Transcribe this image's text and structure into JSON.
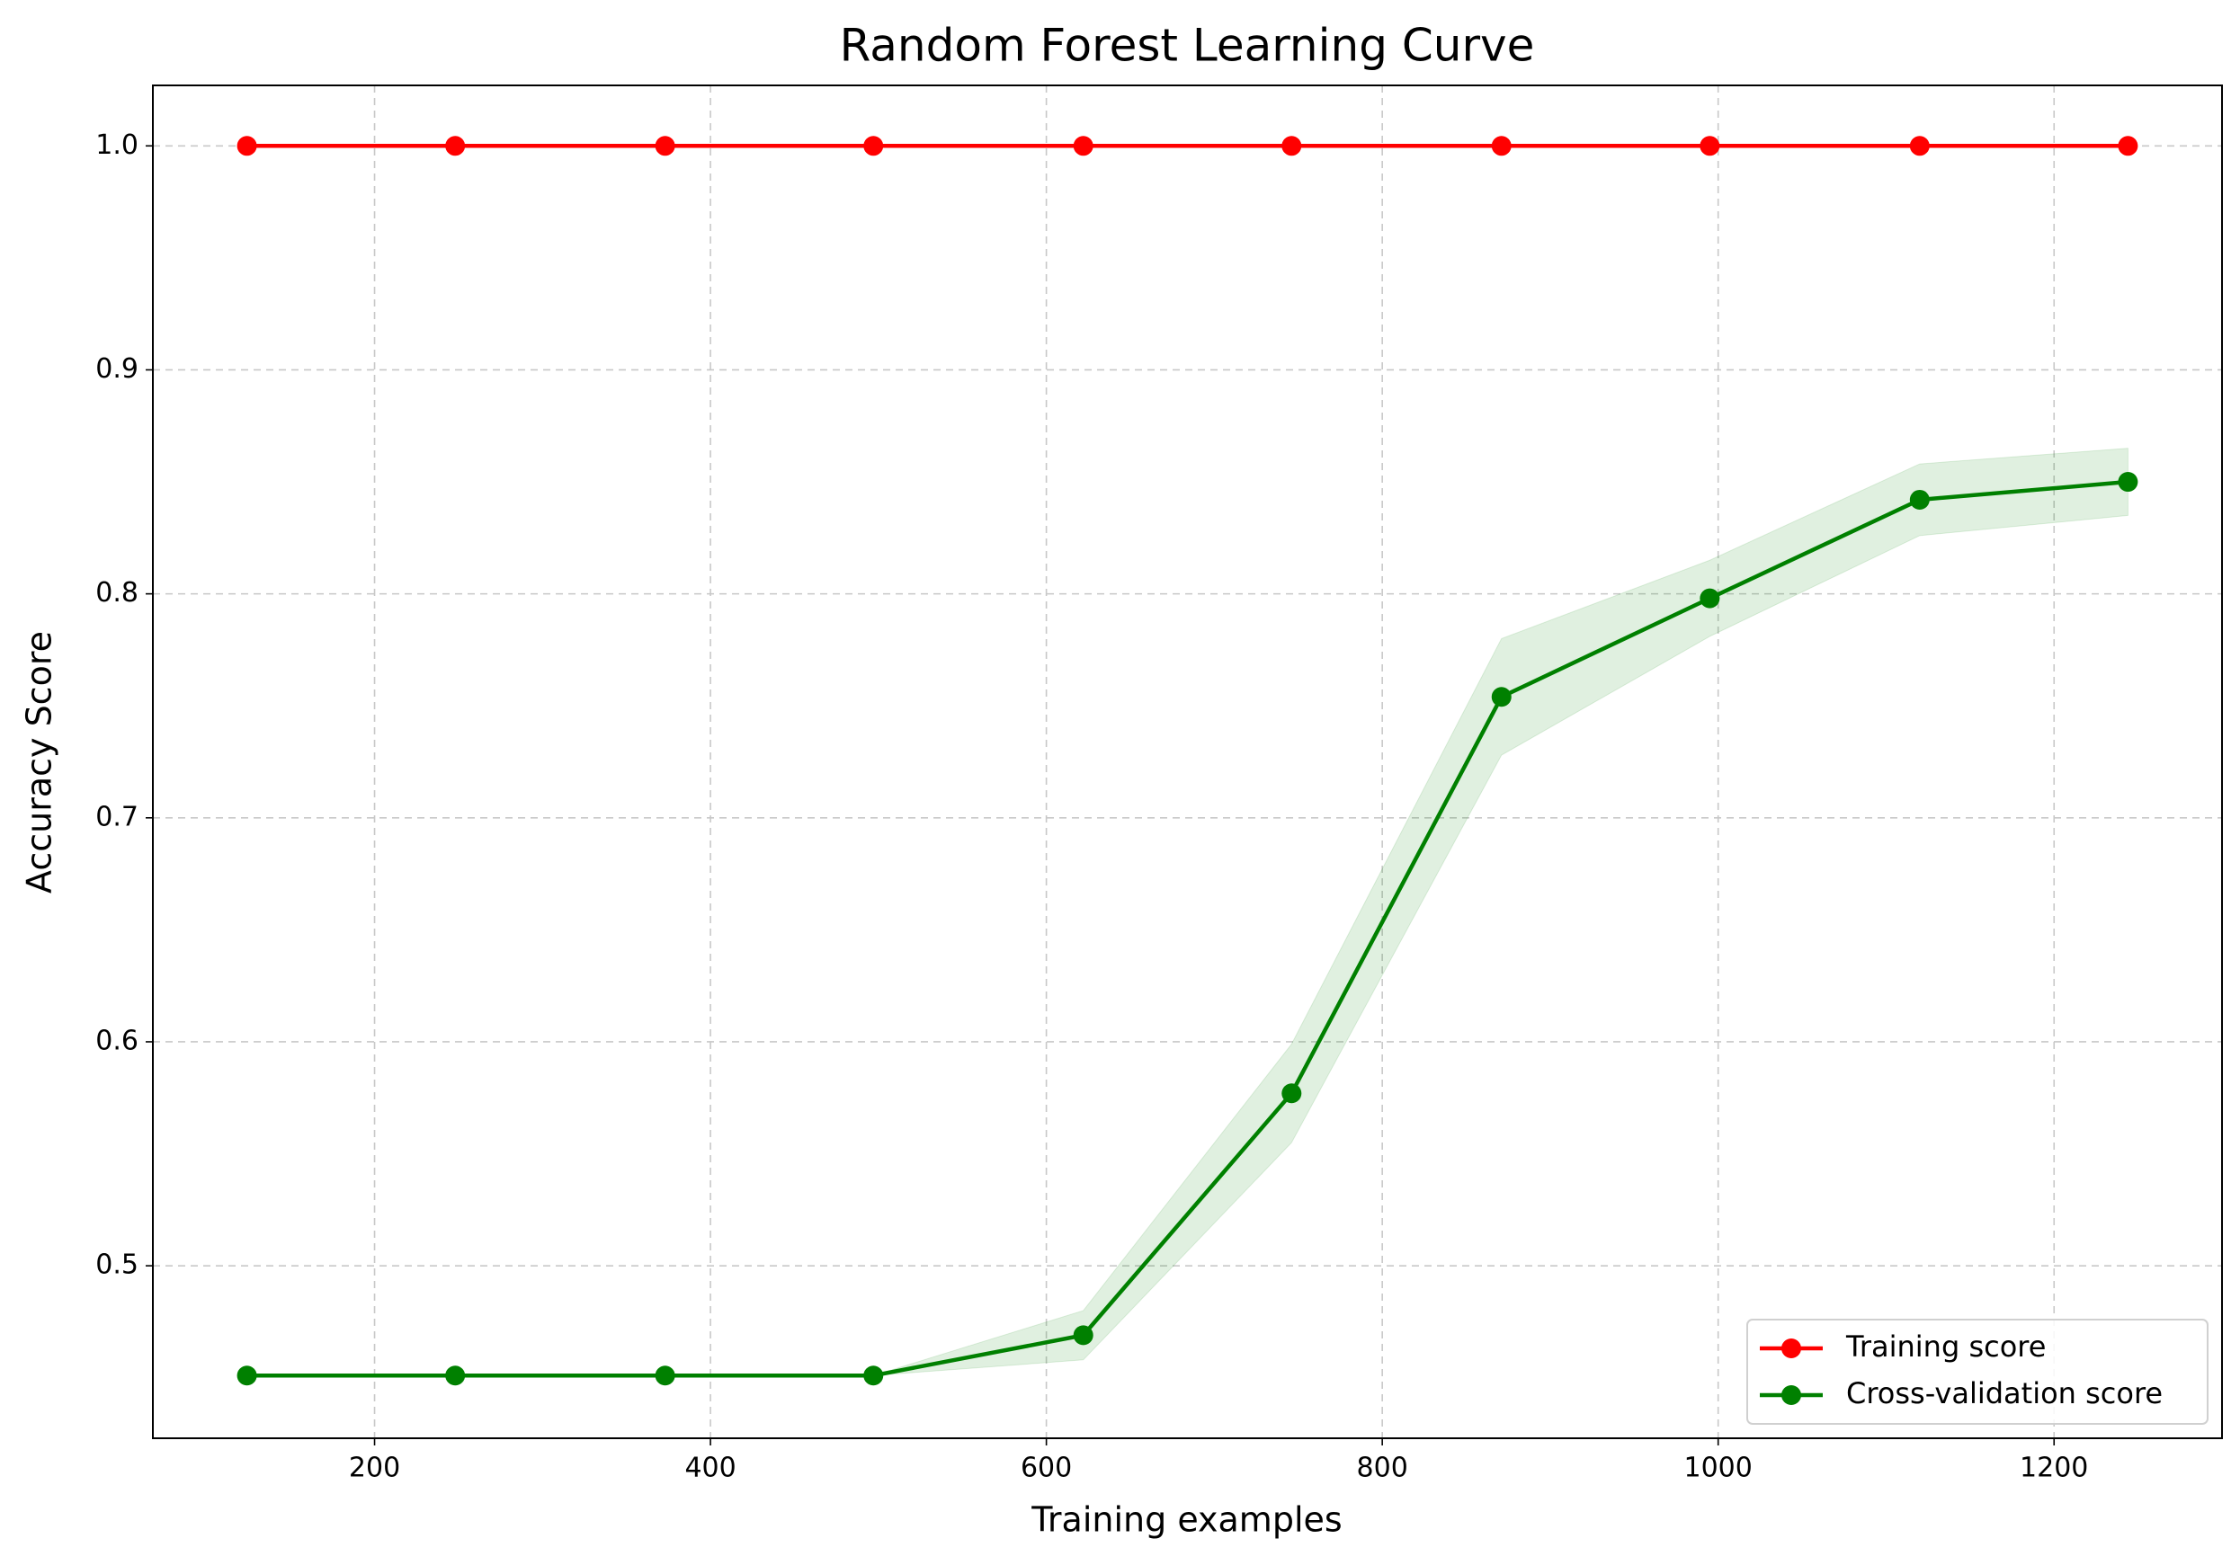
{
  "chart_data": {
    "type": "line",
    "title": "Random Forest Learning Curve",
    "x_label": "Training examples",
    "y_label": "Accuracy Score",
    "x": [
      124,
      248,
      373,
      497,
      622,
      746,
      871,
      995,
      1120,
      1244
    ],
    "series": [
      {
        "name": "Training score",
        "color": "#ff0000",
        "values": [
          1.0,
          1.0,
          1.0,
          1.0,
          1.0,
          1.0,
          1.0,
          1.0,
          1.0,
          1.0
        ],
        "std": [
          0,
          0,
          0,
          0,
          0,
          0,
          0,
          0,
          0,
          0
        ]
      },
      {
        "name": "Cross-validation score",
        "color": "#008000",
        "values": [
          0.451,
          0.451,
          0.451,
          0.451,
          0.469,
          0.577,
          0.754,
          0.798,
          0.842,
          0.85
        ],
        "std": [
          0,
          0,
          0,
          0,
          0.011,
          0.022,
          0.026,
          0.017,
          0.016,
          0.015
        ]
      }
    ],
    "xlim": [
      68,
      1300
    ],
    "xticks": [
      200,
      400,
      600,
      800,
      1000,
      1200
    ],
    "ylim": [
      0.423,
      1.027
    ],
    "yticks": [
      0.5,
      0.6,
      0.7,
      0.8,
      0.9,
      {
        "value": 1,
        "label": "1.0"
      }
    ],
    "grid": true,
    "legend": "lower right"
  }
}
